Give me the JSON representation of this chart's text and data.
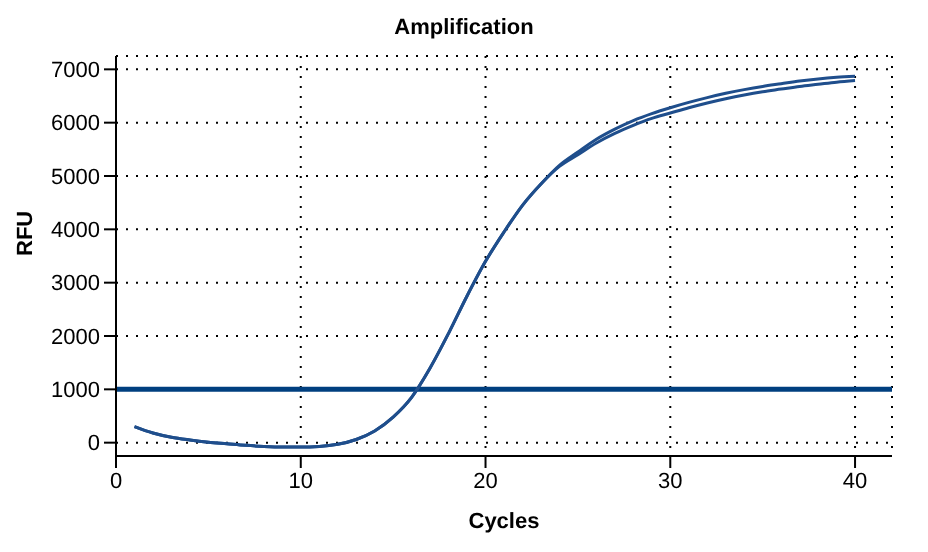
{
  "chart_data": {
    "type": "line",
    "title": "Amplification",
    "xlabel": "Cycles",
    "ylabel": "RFU",
    "x": [
      1,
      2,
      3,
      4,
      5,
      6,
      7,
      8,
      9,
      10,
      11,
      12,
      13,
      14,
      15,
      16,
      17,
      18,
      19,
      20,
      21,
      22,
      23,
      24,
      25,
      26,
      27,
      28,
      29,
      30,
      31,
      32,
      33,
      34,
      35,
      36,
      37,
      38,
      39,
      40
    ],
    "series": [
      {
        "color": "#1f4e8c",
        "values": [
          300,
          180,
          100,
          50,
          10,
          -20,
          -50,
          -70,
          -80,
          -80,
          -70,
          -30,
          60,
          220,
          480,
          850,
          1400,
          2050,
          2750,
          3400,
          3950,
          4450,
          4850,
          5200,
          5450,
          5690,
          5880,
          6040,
          6170,
          6280,
          6380,
          6470,
          6550,
          6620,
          6680,
          6730,
          6780,
          6820,
          6850,
          6870
        ]
      },
      {
        "color": "#1f4e8c",
        "values": [
          300,
          180,
          100,
          50,
          10,
          -20,
          -50,
          -70,
          -80,
          -80,
          -70,
          -30,
          60,
          220,
          480,
          850,
          1400,
          2050,
          2750,
          3400,
          3950,
          4450,
          4850,
          5180,
          5400,
          5620,
          5800,
          5950,
          6080,
          6180,
          6280,
          6370,
          6450,
          6520,
          6580,
          6630,
          6680,
          6720,
          6760,
          6790
        ]
      }
    ],
    "ref_lines": [
      {
        "axis": "y",
        "value": 1000,
        "color": "#003f7f"
      }
    ],
    "xlim": [
      0,
      42
    ],
    "xticks": [
      0,
      10,
      20,
      30,
      40
    ],
    "ylim": [
      -250,
      7250
    ],
    "yticks": [
      0,
      1000,
      2000,
      3000,
      4000,
      5000,
      6000,
      7000
    ],
    "grid": true,
    "marker": "none",
    "line_style": "solid"
  }
}
